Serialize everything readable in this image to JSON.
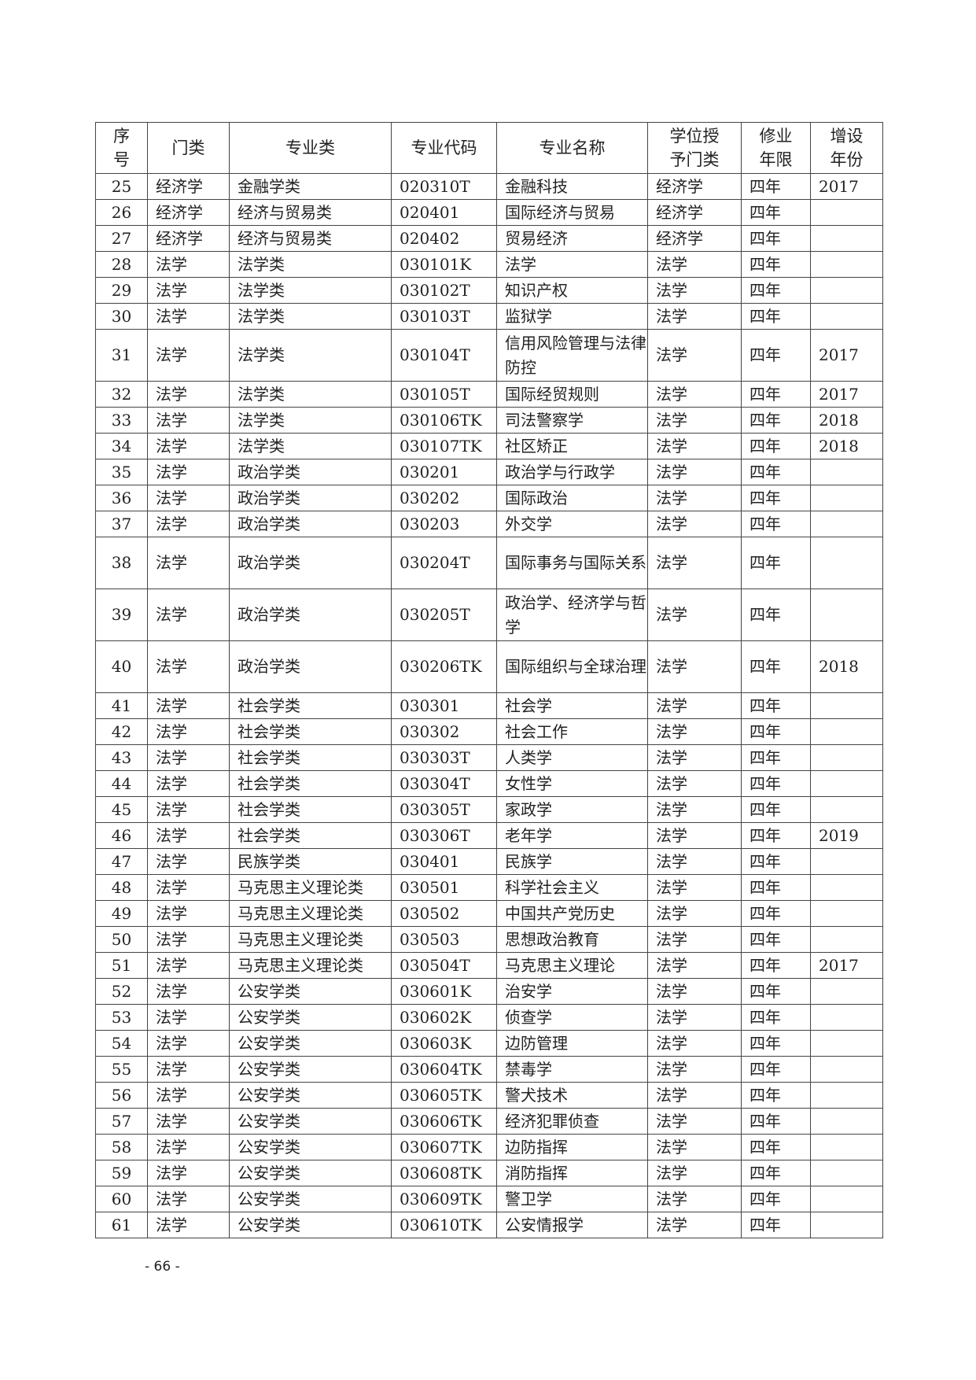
{
  "table": {
    "headers": [
      "序\n号",
      "门类",
      "专业类",
      "专业代码",
      "专业名称",
      "学位授\n予门类",
      "修业\n年限",
      "增设\n年份"
    ],
    "rows": [
      [
        "25",
        "经济学",
        "金融学类",
        "020310T",
        "金融科技",
        "经济学",
        "四年",
        "2017"
      ],
      [
        "26",
        "经济学",
        "经济与贸易类",
        "020401",
        "国际经济与贸易",
        "经济学",
        "四年",
        ""
      ],
      [
        "27",
        "经济学",
        "经济与贸易类",
        "020402",
        "贸易经济",
        "经济学",
        "四年",
        ""
      ],
      [
        "28",
        "法学",
        "法学类",
        "030101K",
        "法学",
        "法学",
        "四年",
        ""
      ],
      [
        "29",
        "法学",
        "法学类",
        "030102T",
        "知识产权",
        "法学",
        "四年",
        ""
      ],
      [
        "30",
        "法学",
        "法学类",
        "030103T",
        "监狱学",
        "法学",
        "四年",
        ""
      ],
      [
        "31",
        "法学",
        "法学类",
        "030104T",
        "信用风险管理与法律防控",
        "法学",
        "四年",
        "2017"
      ],
      [
        "32",
        "法学",
        "法学类",
        "030105T",
        "国际经贸规则",
        "法学",
        "四年",
        "2017"
      ],
      [
        "33",
        "法学",
        "法学类",
        "030106TK",
        "司法警察学",
        "法学",
        "四年",
        "2018"
      ],
      [
        "34",
        "法学",
        "法学类",
        "030107TK",
        "社区矫正",
        "法学",
        "四年",
        "2018"
      ],
      [
        "35",
        "法学",
        "政治学类",
        "030201",
        "政治学与行政学",
        "法学",
        "四年",
        ""
      ],
      [
        "36",
        "法学",
        "政治学类",
        "030202",
        "国际政治",
        "法学",
        "四年",
        ""
      ],
      [
        "37",
        "法学",
        "政治学类",
        "030203",
        "外交学",
        "法学",
        "四年",
        ""
      ],
      [
        "38",
        "法学",
        "政治学类",
        "030204T",
        "国际事务与国际关系",
        "法学",
        "四年",
        ""
      ],
      [
        "39",
        "法学",
        "政治学类",
        "030205T",
        "政治学、经济学与哲学",
        "法学",
        "四年",
        ""
      ],
      [
        "40",
        "法学",
        "政治学类",
        "030206TK",
        "国际组织与全球治理",
        "法学",
        "四年",
        "2018"
      ],
      [
        "41",
        "法学",
        "社会学类",
        "030301",
        "社会学",
        "法学",
        "四年",
        ""
      ],
      [
        "42",
        "法学",
        "社会学类",
        "030302",
        "社会工作",
        "法学",
        "四年",
        ""
      ],
      [
        "43",
        "法学",
        "社会学类",
        "030303T",
        "人类学",
        "法学",
        "四年",
        ""
      ],
      [
        "44",
        "法学",
        "社会学类",
        "030304T",
        "女性学",
        "法学",
        "四年",
        ""
      ],
      [
        "45",
        "法学",
        "社会学类",
        "030305T",
        "家政学",
        "法学",
        "四年",
        ""
      ],
      [
        "46",
        "法学",
        "社会学类",
        "030306T",
        "老年学",
        "法学",
        "四年",
        "2019"
      ],
      [
        "47",
        "法学",
        "民族学类",
        "030401",
        "民族学",
        "法学",
        "四年",
        ""
      ],
      [
        "48",
        "法学",
        "马克思主义理论类",
        "030501",
        "科学社会主义",
        "法学",
        "四年",
        ""
      ],
      [
        "49",
        "法学",
        "马克思主义理论类",
        "030502",
        "中国共产党历史",
        "法学",
        "四年",
        ""
      ],
      [
        "50",
        "法学",
        "马克思主义理论类",
        "030503",
        "思想政治教育",
        "法学",
        "四年",
        ""
      ],
      [
        "51",
        "法学",
        "马克思主义理论类",
        "030504T",
        "马克思主义理论",
        "法学",
        "四年",
        "2017"
      ],
      [
        "52",
        "法学",
        "公安学类",
        "030601K",
        "治安学",
        "法学",
        "四年",
        ""
      ],
      [
        "53",
        "法学",
        "公安学类",
        "030602K",
        "侦查学",
        "法学",
        "四年",
        ""
      ],
      [
        "54",
        "法学",
        "公安学类",
        "030603K",
        "边防管理",
        "法学",
        "四年",
        ""
      ],
      [
        "55",
        "法学",
        "公安学类",
        "030604TK",
        "禁毒学",
        "法学",
        "四年",
        ""
      ],
      [
        "56",
        "法学",
        "公安学类",
        "030605TK",
        "警犬技术",
        "法学",
        "四年",
        ""
      ],
      [
        "57",
        "法学",
        "公安学类",
        "030606TK",
        "经济犯罪侦查",
        "法学",
        "四年",
        ""
      ],
      [
        "58",
        "法学",
        "公安学类",
        "030607TK",
        "边防指挥",
        "法学",
        "四年",
        ""
      ],
      [
        "59",
        "法学",
        "公安学类",
        "030608TK",
        "消防指挥",
        "法学",
        "四年",
        ""
      ],
      [
        "60",
        "法学",
        "公安学类",
        "030609TK",
        "警卫学",
        "法学",
        "四年",
        ""
      ],
      [
        "61",
        "法学",
        "公安学类",
        "030610TK",
        "公安情报学",
        "法学",
        "四年",
        ""
      ]
    ]
  },
  "footer": {
    "page_number": "- 66 -"
  }
}
